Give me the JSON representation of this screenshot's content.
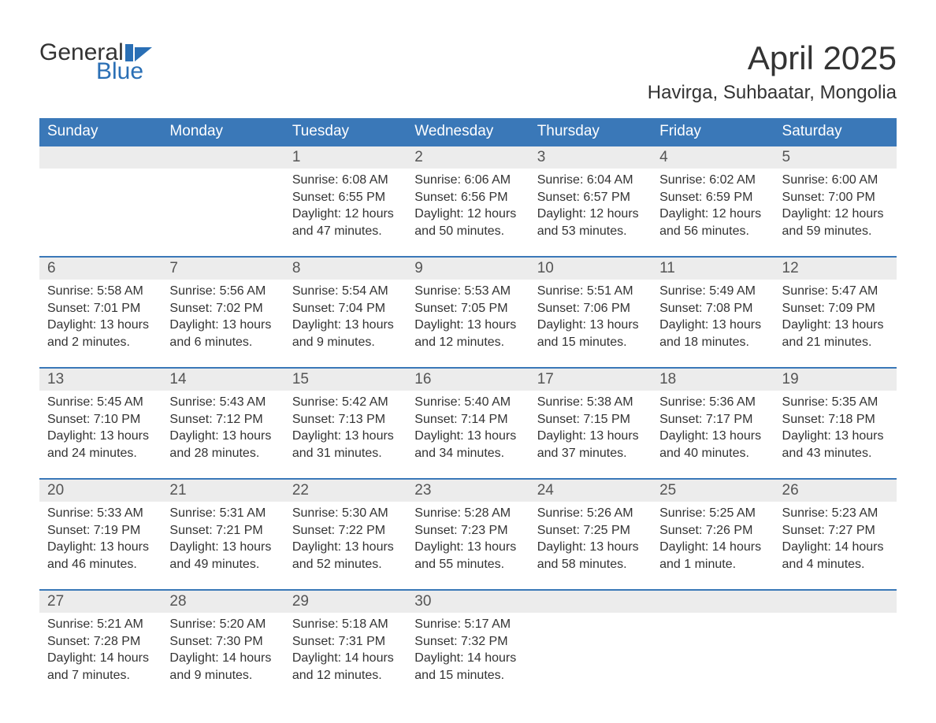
{
  "logo": {
    "text_top": "General",
    "text_bottom": "Blue",
    "accent_color": "#2a6fb5"
  },
  "title": "April 2025",
  "location": "Havirga, Suhbaatar, Mongolia",
  "colors": {
    "header_bg": "#3a78b8",
    "header_text": "#ffffff",
    "daynum_bg": "#ececec",
    "border_top": "#3a78b8",
    "body_text": "#333333",
    "page_bg": "#ffffff"
  },
  "layout": {
    "columns": 7,
    "rows": 5,
    "type": "calendar-table"
  },
  "weekdays": [
    "Sunday",
    "Monday",
    "Tuesday",
    "Wednesday",
    "Thursday",
    "Friday",
    "Saturday"
  ],
  "weeks": [
    [
      null,
      null,
      {
        "day": "1",
        "sunrise": "Sunrise: 6:08 AM",
        "sunset": "Sunset: 6:55 PM",
        "daylight": "Daylight: 12 hours and 47 minutes."
      },
      {
        "day": "2",
        "sunrise": "Sunrise: 6:06 AM",
        "sunset": "Sunset: 6:56 PM",
        "daylight": "Daylight: 12 hours and 50 minutes."
      },
      {
        "day": "3",
        "sunrise": "Sunrise: 6:04 AM",
        "sunset": "Sunset: 6:57 PM",
        "daylight": "Daylight: 12 hours and 53 minutes."
      },
      {
        "day": "4",
        "sunrise": "Sunrise: 6:02 AM",
        "sunset": "Sunset: 6:59 PM",
        "daylight": "Daylight: 12 hours and 56 minutes."
      },
      {
        "day": "5",
        "sunrise": "Sunrise: 6:00 AM",
        "sunset": "Sunset: 7:00 PM",
        "daylight": "Daylight: 12 hours and 59 minutes."
      }
    ],
    [
      {
        "day": "6",
        "sunrise": "Sunrise: 5:58 AM",
        "sunset": "Sunset: 7:01 PM",
        "daylight": "Daylight: 13 hours and 2 minutes."
      },
      {
        "day": "7",
        "sunrise": "Sunrise: 5:56 AM",
        "sunset": "Sunset: 7:02 PM",
        "daylight": "Daylight: 13 hours and 6 minutes."
      },
      {
        "day": "8",
        "sunrise": "Sunrise: 5:54 AM",
        "sunset": "Sunset: 7:04 PM",
        "daylight": "Daylight: 13 hours and 9 minutes."
      },
      {
        "day": "9",
        "sunrise": "Sunrise: 5:53 AM",
        "sunset": "Sunset: 7:05 PM",
        "daylight": "Daylight: 13 hours and 12 minutes."
      },
      {
        "day": "10",
        "sunrise": "Sunrise: 5:51 AM",
        "sunset": "Sunset: 7:06 PM",
        "daylight": "Daylight: 13 hours and 15 minutes."
      },
      {
        "day": "11",
        "sunrise": "Sunrise: 5:49 AM",
        "sunset": "Sunset: 7:08 PM",
        "daylight": "Daylight: 13 hours and 18 minutes."
      },
      {
        "day": "12",
        "sunrise": "Sunrise: 5:47 AM",
        "sunset": "Sunset: 7:09 PM",
        "daylight": "Daylight: 13 hours and 21 minutes."
      }
    ],
    [
      {
        "day": "13",
        "sunrise": "Sunrise: 5:45 AM",
        "sunset": "Sunset: 7:10 PM",
        "daylight": "Daylight: 13 hours and 24 minutes."
      },
      {
        "day": "14",
        "sunrise": "Sunrise: 5:43 AM",
        "sunset": "Sunset: 7:12 PM",
        "daylight": "Daylight: 13 hours and 28 minutes."
      },
      {
        "day": "15",
        "sunrise": "Sunrise: 5:42 AM",
        "sunset": "Sunset: 7:13 PM",
        "daylight": "Daylight: 13 hours and 31 minutes."
      },
      {
        "day": "16",
        "sunrise": "Sunrise: 5:40 AM",
        "sunset": "Sunset: 7:14 PM",
        "daylight": "Daylight: 13 hours and 34 minutes."
      },
      {
        "day": "17",
        "sunrise": "Sunrise: 5:38 AM",
        "sunset": "Sunset: 7:15 PM",
        "daylight": "Daylight: 13 hours and 37 minutes."
      },
      {
        "day": "18",
        "sunrise": "Sunrise: 5:36 AM",
        "sunset": "Sunset: 7:17 PM",
        "daylight": "Daylight: 13 hours and 40 minutes."
      },
      {
        "day": "19",
        "sunrise": "Sunrise: 5:35 AM",
        "sunset": "Sunset: 7:18 PM",
        "daylight": "Daylight: 13 hours and 43 minutes."
      }
    ],
    [
      {
        "day": "20",
        "sunrise": "Sunrise: 5:33 AM",
        "sunset": "Sunset: 7:19 PM",
        "daylight": "Daylight: 13 hours and 46 minutes."
      },
      {
        "day": "21",
        "sunrise": "Sunrise: 5:31 AM",
        "sunset": "Sunset: 7:21 PM",
        "daylight": "Daylight: 13 hours and 49 minutes."
      },
      {
        "day": "22",
        "sunrise": "Sunrise: 5:30 AM",
        "sunset": "Sunset: 7:22 PM",
        "daylight": "Daylight: 13 hours and 52 minutes."
      },
      {
        "day": "23",
        "sunrise": "Sunrise: 5:28 AM",
        "sunset": "Sunset: 7:23 PM",
        "daylight": "Daylight: 13 hours and 55 minutes."
      },
      {
        "day": "24",
        "sunrise": "Sunrise: 5:26 AM",
        "sunset": "Sunset: 7:25 PM",
        "daylight": "Daylight: 13 hours and 58 minutes."
      },
      {
        "day": "25",
        "sunrise": "Sunrise: 5:25 AM",
        "sunset": "Sunset: 7:26 PM",
        "daylight": "Daylight: 14 hours and 1 minute."
      },
      {
        "day": "26",
        "sunrise": "Sunrise: 5:23 AM",
        "sunset": "Sunset: 7:27 PM",
        "daylight": "Daylight: 14 hours and 4 minutes."
      }
    ],
    [
      {
        "day": "27",
        "sunrise": "Sunrise: 5:21 AM",
        "sunset": "Sunset: 7:28 PM",
        "daylight": "Daylight: 14 hours and 7 minutes."
      },
      {
        "day": "28",
        "sunrise": "Sunrise: 5:20 AM",
        "sunset": "Sunset: 7:30 PM",
        "daylight": "Daylight: 14 hours and 9 minutes."
      },
      {
        "day": "29",
        "sunrise": "Sunrise: 5:18 AM",
        "sunset": "Sunset: 7:31 PM",
        "daylight": "Daylight: 14 hours and 12 minutes."
      },
      {
        "day": "30",
        "sunrise": "Sunrise: 5:17 AM",
        "sunset": "Sunset: 7:32 PM",
        "daylight": "Daylight: 14 hours and 15 minutes."
      },
      null,
      null,
      null
    ]
  ]
}
